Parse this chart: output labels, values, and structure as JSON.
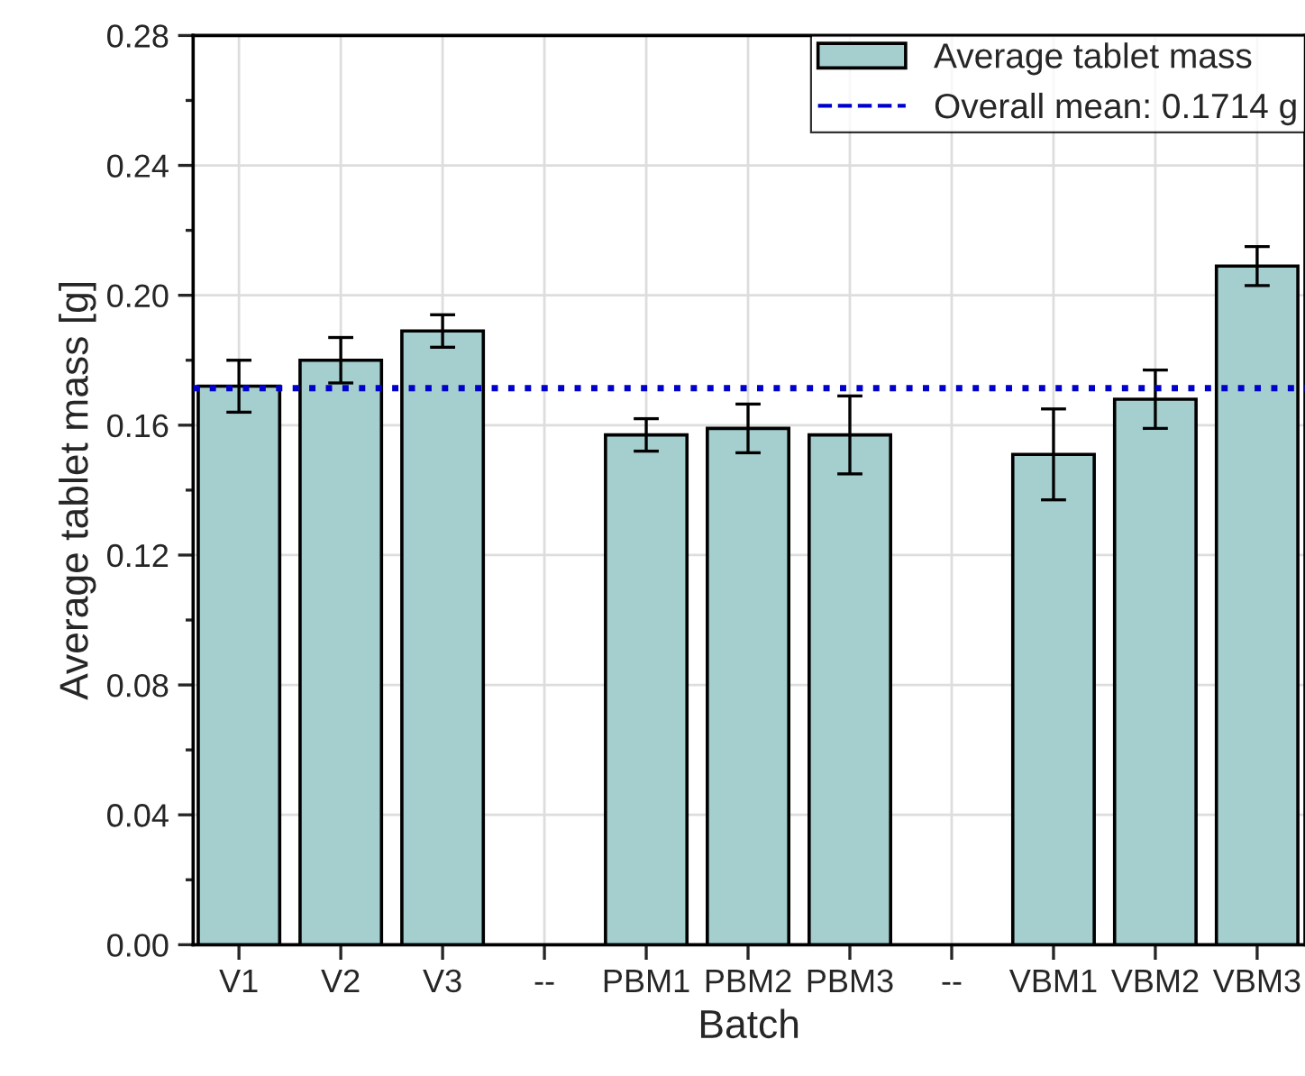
{
  "chart_data": {
    "type": "bar",
    "xlabel": "Batch",
    "ylabel": "Average tablet mass [g]",
    "categories": [
      "V1",
      "V2",
      "V3",
      "--",
      "PBM1",
      "PBM2",
      "PBM3",
      "--",
      "VBM1",
      "VBM2",
      "VBM3"
    ],
    "series": [
      {
        "name": "Average tablet mass",
        "color": "#a5cece",
        "values": [
          0.172,
          0.18,
          0.189,
          null,
          0.157,
          0.159,
          0.157,
          null,
          0.151,
          0.168,
          0.209
        ],
        "errors": [
          0.008,
          0.007,
          0.005,
          null,
          0.005,
          0.0075,
          0.012,
          null,
          0.014,
          0.009,
          0.006
        ]
      }
    ],
    "ref_lines": [
      {
        "axis": "y",
        "value": 0.1714,
        "label": "Overall mean: 0.1714 g",
        "color": "#0000cc",
        "line_style": "dotted"
      }
    ],
    "ylim": [
      0,
      0.28
    ],
    "yticks": [
      {
        "value": 0,
        "label": "0.00"
      },
      {
        "value": 0.04,
        "label": "0.04"
      },
      {
        "value": 0.08,
        "label": "0.08"
      },
      {
        "value": 0.12,
        "label": "0.12"
      },
      {
        "value": 0.16,
        "label": "0.16"
      },
      {
        "value": 0.2,
        "label": "0.20"
      },
      {
        "value": 0.24,
        "label": "0.24"
      },
      {
        "value": 0.28,
        "label": "0.28"
      }
    ],
    "grid": true,
    "legend": "top right"
  }
}
